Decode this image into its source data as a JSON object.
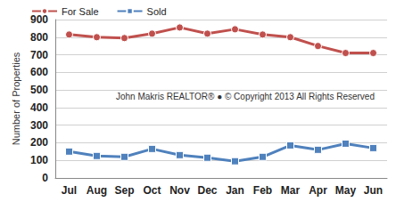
{
  "chart_data": {
    "type": "line",
    "ylabel": "Number of Properties",
    "annotation": "John Makris REALTOR® ● © Copyright 2013 All Rights Reserved",
    "categories": [
      "Jul",
      "Aug",
      "Sep",
      "Oct",
      "Nov",
      "Dec",
      "Jan",
      "Feb",
      "Mar",
      "Apr",
      "May",
      "Jun"
    ],
    "series": [
      {
        "name": "For Sale",
        "color": "#c0504d",
        "marker": "circle",
        "values": [
          815,
          800,
          795,
          820,
          855,
          820,
          845,
          815,
          800,
          750,
          710,
          710
        ]
      },
      {
        "name": "Sold",
        "color": "#4f81bd",
        "marker": "square",
        "values": [
          150,
          125,
          120,
          165,
          130,
          115,
          95,
          120,
          185,
          160,
          195,
          170
        ]
      }
    ],
    "ylim": [
      0,
      900
    ],
    "yticks": [
      0,
      100,
      200,
      300,
      400,
      500,
      600,
      700,
      800,
      900
    ],
    "grid": true,
    "legend": "top-left"
  }
}
